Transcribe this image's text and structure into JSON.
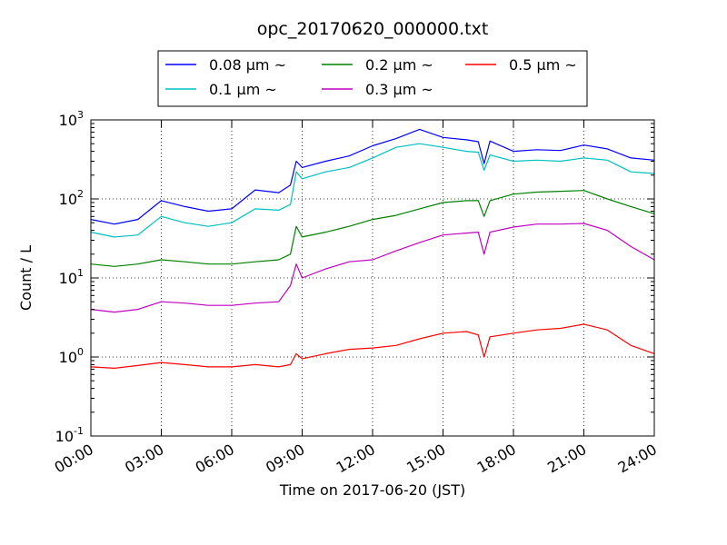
{
  "chart_data": {
    "type": "line",
    "title": "opc_20170620_000000.txt",
    "xlabel": "Time on 2017-06-20 (JST)",
    "ylabel": "Count / L",
    "yscale": "log",
    "ylim": [
      0.1,
      1000
    ],
    "y_ticks": [
      {
        "base": "10",
        "exp": "-1"
      },
      {
        "base": "10",
        "exp": "0"
      },
      {
        "base": "10",
        "exp": "1"
      },
      {
        "base": "10",
        "exp": "2"
      },
      {
        "base": "10",
        "exp": "3"
      }
    ],
    "xlim": [
      "00:00",
      "24:00"
    ],
    "x_ticks": [
      "00:00",
      "03:00",
      "06:00",
      "09:00",
      "12:00",
      "15:00",
      "18:00",
      "21:00",
      "24:00"
    ],
    "grid": true,
    "legend_position": "top, above plot",
    "x": [
      "00:00",
      "01:00",
      "02:00",
      "03:00",
      "04:00",
      "05:00",
      "06:00",
      "07:00",
      "08:00",
      "08:30",
      "08:45",
      "09:00",
      "10:00",
      "11:00",
      "12:00",
      "13:00",
      "14:00",
      "15:00",
      "16:00",
      "16:30",
      "16:45",
      "17:00",
      "18:00",
      "19:00",
      "20:00",
      "21:00",
      "22:00",
      "23:00",
      "24:00"
    ],
    "series": [
      {
        "name": "0.08 μm ~",
        "color": "#0000ff",
        "values": [
          55,
          48,
          55,
          95,
          80,
          70,
          75,
          130,
          120,
          150,
          300,
          250,
          300,
          350,
          470,
          580,
          760,
          600,
          560,
          530,
          280,
          540,
          400,
          420,
          410,
          480,
          430,
          330,
          310
        ]
      },
      {
        "name": "0.1 μm ~",
        "color": "#00bfbf",
        "values": [
          38,
          33,
          35,
          60,
          50,
          45,
          50,
          75,
          72,
          85,
          220,
          180,
          220,
          250,
          330,
          450,
          500,
          450,
          400,
          390,
          230,
          360,
          300,
          310,
          300,
          330,
          310,
          220,
          210
        ]
      },
      {
        "name": "0.2 μm ~",
        "color": "#008000",
        "values": [
          15,
          14,
          15,
          17,
          16,
          15,
          15,
          16,
          17,
          20,
          45,
          33,
          38,
          45,
          55,
          62,
          75,
          90,
          95,
          95,
          60,
          95,
          115,
          122,
          125,
          128,
          100,
          80,
          65
        ]
      },
      {
        "name": "0.3 μm ~",
        "color": "#bf00bf",
        "values": [
          4,
          3.7,
          4,
          5,
          4.8,
          4.5,
          4.5,
          4.8,
          5,
          8,
          15,
          10,
          13,
          16,
          17,
          22,
          28,
          35,
          37,
          38,
          20,
          38,
          44,
          48,
          48,
          49,
          40,
          25,
          17
        ]
      },
      {
        "name": "0.5 μm ~",
        "color": "#ff0000",
        "values": [
          0.75,
          0.72,
          0.78,
          0.85,
          0.8,
          0.75,
          0.75,
          0.8,
          0.75,
          0.8,
          1.1,
          0.95,
          1.1,
          1.25,
          1.3,
          1.4,
          1.7,
          2.0,
          2.1,
          1.9,
          1.0,
          1.8,
          2.0,
          2.2,
          2.3,
          2.6,
          2.2,
          1.4,
          1.1
        ]
      }
    ]
  }
}
